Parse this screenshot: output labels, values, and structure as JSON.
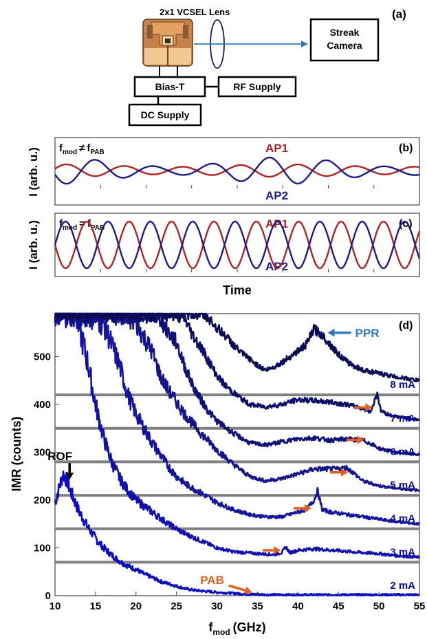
{
  "panel_a": {
    "panel_label": "(a)",
    "chip_label": "2x1 VCSEL",
    "lens_label": "Lens",
    "camera_label_line1": "Streak",
    "camera_label_line2": "Camera",
    "bias_t_label": "Bias-T",
    "rf_label": "RF Supply",
    "dc_label": "DC Supply",
    "beam_color": "#2b7bc0"
  },
  "chart_data": [
    {
      "panel": "(b)",
      "type": "line",
      "condition": {
        "lhs": "f",
        "lhs_sub": "mod",
        "op": "≠",
        "rhs": "f",
        "rhs_sub": "PAB"
      },
      "ylabel": "I (arb. u.)",
      "xlabel": "",
      "grid": false,
      "series": [
        {
          "name": "AP1",
          "color": "#b22222",
          "amplitude": 0.35,
          "cycles": 6.3,
          "phase": 0.3,
          "envelope_depth": 0.4
        },
        {
          "name": "AP2",
          "color": "#1a1a8c",
          "amplitude": 0.75,
          "cycles": 6.3,
          "phase": 3.44,
          "envelope_depth": 0.7
        }
      ]
    },
    {
      "panel": "(c)",
      "type": "line",
      "condition": {
        "lhs": "f",
        "lhs_sub": "mod",
        "op": "=",
        "rhs": "f",
        "rhs_sub": "PAB"
      },
      "ylabel": "I (arb. u.)",
      "xlabel": "Time",
      "grid": false,
      "series": [
        {
          "name": "AP1",
          "color": "#b22222",
          "amplitude": 0.85,
          "cycles": 8.6,
          "phase": 3.14
        },
        {
          "name": "AP2",
          "color": "#1a1a8c",
          "amplitude": 0.85,
          "cycles": 8.6,
          "phase": 0.0
        }
      ]
    },
    {
      "panel": "(d)",
      "type": "line",
      "xlabel": "f",
      "xlabel_sub": "mod",
      "xlabel_unit": "(GHz)",
      "ylabel": "IMR (counts)",
      "xlim": [
        10,
        55
      ],
      "ylim": [
        0,
        590
      ],
      "xticks": [
        10,
        15,
        20,
        25,
        30,
        35,
        40,
        45,
        50,
        55
      ],
      "yticks": [
        0,
        100,
        200,
        300,
        400,
        500
      ],
      "grid": false,
      "baselines": [
        70,
        140,
        210,
        280,
        350,
        420
      ],
      "series": [
        {
          "name": "2 mA",
          "offset": 0,
          "color": "#0a0ac8",
          "x": [
            10,
            10.5,
            11,
            11.5,
            12,
            12.5,
            13,
            14,
            15,
            16,
            17,
            18,
            19,
            20,
            21,
            22,
            23,
            24,
            25,
            26,
            27,
            28,
            30,
            32,
            34,
            35,
            36,
            40,
            45,
            50,
            55
          ],
          "y": [
            195,
            225,
            255,
            240,
            215,
            195,
            175,
            145,
            120,
            100,
            85,
            72,
            62,
            55,
            45,
            38,
            30,
            25,
            20,
            15,
            12,
            10,
            7,
            5,
            3,
            3,
            2,
            2,
            2,
            2,
            2
          ]
        },
        {
          "name": "3 mA",
          "offset": 70,
          "color": "#0f0fb4",
          "x": [
            10,
            12,
            14,
            15,
            16,
            17,
            18,
            19,
            20,
            22,
            24,
            26,
            28,
            30,
            32,
            35,
            37,
            38,
            38.5,
            39,
            40,
            42,
            45,
            48,
            50,
            52,
            55
          ],
          "y": [
            590,
            560,
            420,
            330,
            260,
            210,
            175,
            150,
            130,
            105,
            80,
            60,
            45,
            30,
            22,
            18,
            16,
            20,
            32,
            20,
            25,
            28,
            24,
            20,
            18,
            14,
            10
          ]
        },
        {
          "name": "4 mA",
          "offset": 140,
          "color": "#1414a0",
          "x": [
            10,
            14,
            16,
            18,
            19,
            20,
            22,
            24,
            25,
            26,
            28,
            30,
            32,
            34,
            36,
            38,
            40,
            41,
            42,
            42.4,
            43,
            44,
            46,
            48,
            50,
            52,
            55
          ],
          "y": [
            450,
            450,
            430,
            340,
            280,
            240,
            180,
            130,
            110,
            95,
            75,
            55,
            40,
            30,
            25,
            25,
            35,
            40,
            60,
            80,
            40,
            35,
            30,
            25,
            20,
            15,
            10
          ]
        },
        {
          "name": "5 mA",
          "offset": 210,
          "color": "#14148c",
          "x": [
            10,
            18,
            20,
            22,
            23,
            24,
            26,
            28,
            30,
            32,
            34,
            36,
            38,
            40,
            42,
            44,
            45,
            46,
            47,
            48,
            50,
            52,
            55
          ],
          "y": [
            380,
            380,
            360,
            300,
            250,
            220,
            170,
            130,
            95,
            65,
            40,
            30,
            35,
            45,
            55,
            55,
            55,
            58,
            45,
            30,
            20,
            15,
            10
          ]
        },
        {
          "name": "6 mA",
          "offset": 280,
          "color": "#10107a",
          "x": [
            10,
            22,
            23,
            24,
            25,
            26,
            27,
            28,
            29,
            30,
            32,
            34,
            36,
            38,
            40,
            42,
            44,
            46,
            48,
            49,
            50,
            52,
            55
          ],
          "y": [
            310,
            310,
            300,
            270,
            250,
            200,
            160,
            130,
            105,
            85,
            60,
            40,
            35,
            42,
            48,
            50,
            45,
            48,
            45,
            38,
            28,
            20,
            15
          ]
        },
        {
          "name": "7 mA",
          "offset": 350,
          "color": "#0c0c6a",
          "x": [
            10,
            25,
            26,
            27,
            28,
            29,
            30,
            31,
            32,
            34,
            36,
            38,
            40,
            42,
            44,
            46,
            48,
            49,
            49.8,
            50.2,
            51,
            52,
            55
          ],
          "y": [
            240,
            240,
            230,
            195,
            170,
            140,
            110,
            90,
            75,
            50,
            45,
            50,
            60,
            58,
            55,
            50,
            42,
            35,
            75,
            38,
            30,
            25,
            18
          ]
        },
        {
          "name": "8 mA",
          "offset": 420,
          "color": "#0a0a55",
          "x": [
            10,
            28,
            29,
            30,
            31,
            32,
            33,
            34,
            35,
            36,
            37,
            38,
            39,
            40,
            41,
            42,
            43,
            44,
            45,
            46,
            47,
            48,
            50,
            52,
            55
          ],
          "y": [
            170,
            170,
            160,
            140,
            125,
            105,
            88,
            75,
            62,
            52,
            58,
            68,
            80,
            92,
            105,
            138,
            125,
            105,
            85,
            70,
            60,
            52,
            45,
            38,
            30
          ]
        }
      ],
      "annotations": [
        {
          "text": "ROF",
          "color": "#000000",
          "arrow": "down",
          "x": 11.8,
          "y": 240
        },
        {
          "text": "PAB",
          "color": "#e06020",
          "arrow": "right",
          "x": 34.5,
          "y": 4
        },
        {
          "text": "PPR",
          "color": "#2b7bc0",
          "arrow": "left",
          "x": 43.5,
          "y": 550
        }
      ],
      "orange_arrows": [
        {
          "x": 38.2,
          "y": 95
        },
        {
          "x": 42,
          "y": 183
        },
        {
          "x": 46.5,
          "y": 258
        },
        {
          "x": 48.5,
          "y": 326
        },
        {
          "x": 49.5,
          "y": 394
        }
      ],
      "arrow_color": "#e06020"
    }
  ]
}
